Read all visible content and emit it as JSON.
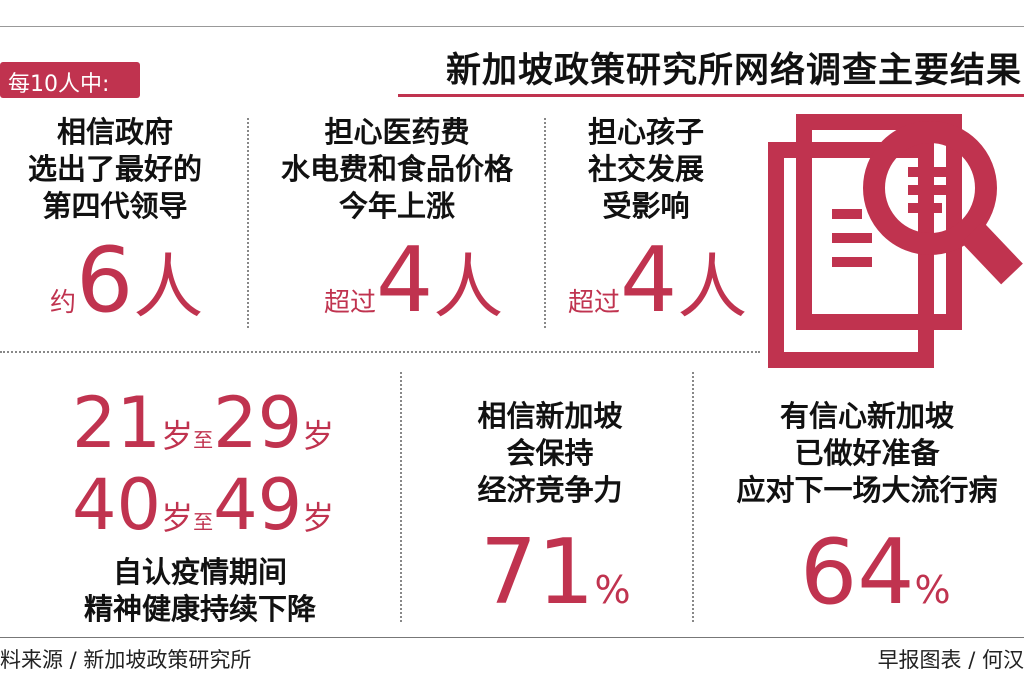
{
  "badge": "每10人中:",
  "title": "新加坡政策研究所网络调查主要结果",
  "top": [
    {
      "lines": [
        "相信政府",
        "选出了最好的",
        "第四代领导"
      ],
      "prefix": "约",
      "number": "6",
      "unit": "人"
    },
    {
      "lines": [
        "担心医药费",
        "水电费和食品价格",
        "今年上涨"
      ],
      "prefix": "超过",
      "number": "4",
      "unit": "人"
    },
    {
      "lines": [
        "担心孩子",
        "社交发展",
        "受影响"
      ],
      "prefix": "超过",
      "number": "4",
      "unit": "人"
    }
  ],
  "ages": {
    "row1": {
      "a": "21",
      "b": "29"
    },
    "row2": {
      "a": "40",
      "b": "49"
    },
    "sui": "岁",
    "zhi": "至",
    "lines": [
      "自认疫情期间",
      "精神健康持续下降"
    ]
  },
  "bottom": [
    {
      "lines": [
        "相信新加坡",
        "会保持",
        "经济竞争力"
      ],
      "number": "71",
      "unit": "%"
    },
    {
      "lines": [
        "有信心新加坡",
        "已做好准备",
        "应对下一场大流行病"
      ],
      "number": "64",
      "unit": "%"
    }
  ],
  "footer": {
    "source": "料来源 / 新加坡政策研究所",
    "credit": "早报图表 / 何汉"
  },
  "icon": "magnifier-document-icon",
  "colors": {
    "accent": "#c0334f",
    "text": "#111111"
  }
}
